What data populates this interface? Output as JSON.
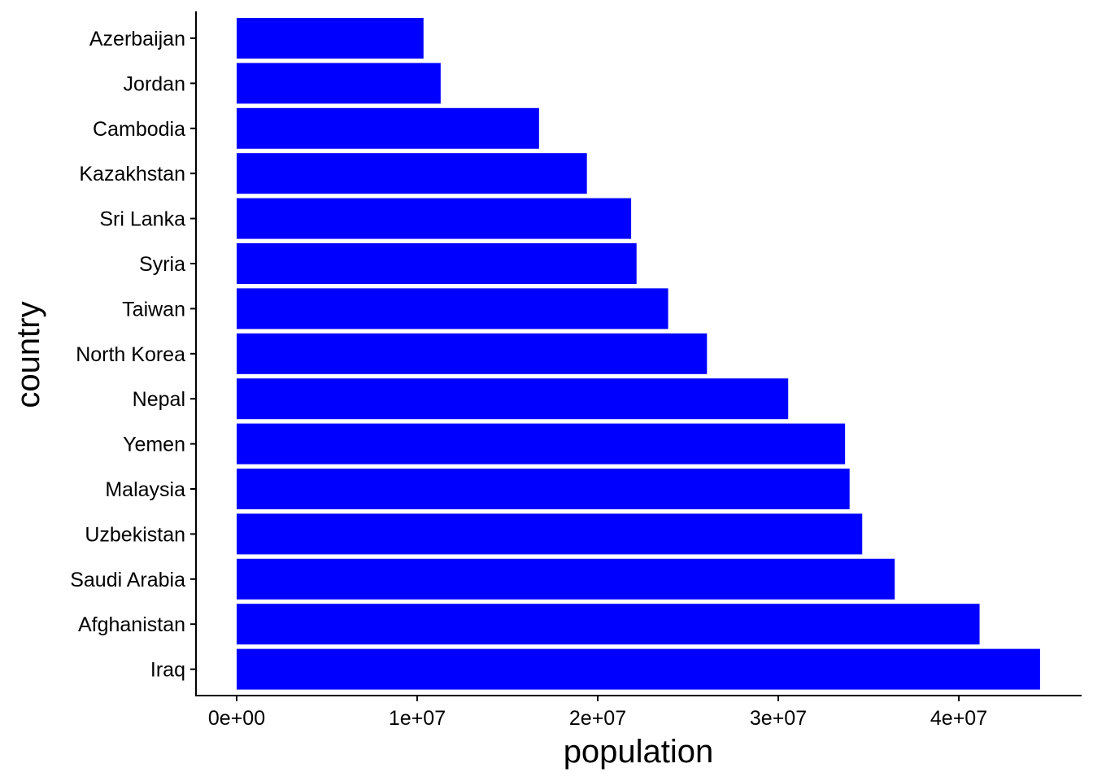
{
  "chart_data": {
    "type": "bar",
    "orientation": "horizontal",
    "title": "",
    "xlabel": "population",
    "ylabel": "country",
    "bar_color": "#0000ff",
    "grid": false,
    "legend": "none",
    "xlim": [
      0,
      45000000
    ],
    "x_ticks": [
      0,
      10000000,
      20000000,
      30000000,
      40000000
    ],
    "x_tick_labels": [
      "0e+00",
      "1e+07",
      "2e+07",
      "3e+07",
      "4e+07"
    ],
    "categories": [
      "Azerbaijan",
      "Jordan",
      "Cambodia",
      "Kazakhstan",
      "Sri Lanka",
      "Syria",
      "Taiwan",
      "North Korea",
      "Nepal",
      "Yemen",
      "Malaysia",
      "Uzbekistan",
      "Saudi Arabia",
      "Afghanistan",
      "Iraq"
    ],
    "values": [
      10350000,
      11300000,
      16750000,
      19400000,
      21850000,
      22150000,
      23900000,
      26050000,
      30550000,
      33700000,
      33950000,
      34650000,
      36450000,
      41150000,
      44500000
    ]
  }
}
